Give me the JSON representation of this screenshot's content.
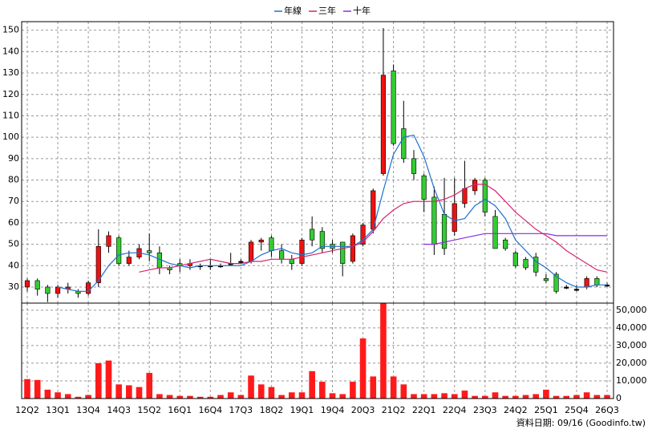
{
  "chart_data": {
    "type": "candlestick",
    "categories": [
      "12Q2",
      null,
      null,
      "13Q1",
      null,
      null,
      "13Q4",
      null,
      null,
      "14Q3",
      null,
      null,
      "15Q2",
      null,
      null,
      "16Q1",
      null,
      null,
      "16Q4",
      null,
      null,
      "17Q3",
      null,
      null,
      "18Q2",
      null,
      null,
      "19Q1",
      null,
      null,
      "19Q4",
      null,
      null,
      "20Q3",
      null,
      null,
      "21Q2",
      null,
      null,
      "22Q1",
      null,
      null,
      "22Q4",
      null,
      null,
      "23Q3",
      null,
      null,
      "24Q2",
      null,
      null,
      "25Q1",
      null,
      null,
      "25Q4",
      null,
      null,
      "26Q3"
    ],
    "open": [
      30,
      33,
      30,
      27,
      29,
      28,
      27,
      32,
      49,
      53,
      41,
      44,
      47,
      46,
      39,
      41,
      40,
      40,
      40,
      40,
      41,
      42,
      42,
      51,
      53,
      47,
      43,
      41,
      57,
      56,
      50,
      51,
      42,
      50,
      57,
      83,
      131,
      104,
      90,
      82,
      72,
      64,
      56,
      69,
      75,
      80,
      63,
      52,
      46,
      43,
      44,
      34,
      36,
      30,
      29,
      30,
      34,
      31
    ],
    "high": [
      34,
      34,
      31,
      31,
      32,
      29,
      33,
      57,
      56,
      54,
      47,
      50,
      55,
      49,
      40,
      43,
      43,
      41,
      43,
      41,
      46,
      43,
      52,
      53,
      54,
      50,
      45,
      53,
      63,
      58,
      52,
      51,
      55,
      60,
      76,
      151,
      134,
      117,
      94,
      83,
      77,
      81,
      81,
      89,
      81,
      81,
      66,
      53,
      47,
      44,
      46,
      36,
      37,
      31,
      31,
      35,
      35,
      32
    ],
    "low": [
      28,
      26,
      23,
      25,
      27,
      25,
      26,
      30,
      46,
      40,
      40,
      43,
      42,
      36,
      36,
      37,
      38,
      38,
      38,
      39,
      40,
      41,
      41,
      47,
      44,
      41,
      38,
      40,
      49,
      46,
      46,
      35,
      41,
      49,
      55,
      82,
      96,
      88,
      80,
      65,
      45,
      45,
      54,
      67,
      73,
      63,
      48,
      47,
      39,
      38,
      35,
      32,
      27,
      29,
      28,
      29,
      30,
      30
    ],
    "close": [
      33,
      29,
      27,
      30,
      30,
      27,
      32,
      49,
      54,
      41,
      44,
      48,
      46,
      39,
      38,
      40,
      41,
      40,
      40,
      40,
      41,
      42,
      51,
      52,
      47,
      43,
      41,
      52,
      52,
      48,
      48,
      41,
      54,
      59,
      75,
      129,
      97,
      90,
      83,
      71,
      50,
      48,
      69,
      76,
      80,
      65,
      48,
      48,
      40,
      39,
      37,
      33,
      28,
      30,
      29,
      34,
      31,
      31
    ],
    "up_color": "#ee1111",
    "down_color": "#33cc33",
    "ylim": [
      22.5,
      154
    ],
    "yticks": [
      30,
      40,
      50,
      60,
      70,
      80,
      90,
      100,
      110,
      120,
      130,
      140,
      150
    ],
    "grid": true,
    "legend": "top",
    "series": [
      {
        "name": "年線",
        "color": "#1f6fcf",
        "values": [
          null,
          null,
          null,
          30,
          29,
          28,
          28,
          33,
          40,
          45,
          46,
          46,
          45,
          43,
          41,
          40,
          39,
          40,
          40,
          40,
          40,
          40,
          42,
          45,
          47,
          48,
          46,
          45,
          46,
          49,
          49,
          49,
          49,
          52,
          57,
          75,
          92,
          100,
          101,
          91,
          76,
          64,
          61,
          62,
          68,
          71,
          68,
          62,
          52,
          47,
          42,
          39,
          35,
          32,
          30,
          30,
          31,
          31
        ]
      },
      {
        "name": "三年",
        "color": "#d6246e",
        "values": [
          null,
          null,
          null,
          null,
          null,
          null,
          null,
          null,
          null,
          null,
          null,
          37,
          38,
          39,
          39,
          40,
          41,
          42,
          43,
          42,
          41,
          41,
          42,
          42,
          43,
          43,
          43,
          44,
          45,
          46,
          47,
          48,
          49,
          51,
          56,
          62,
          66,
          69,
          70,
          70,
          70,
          71,
          73,
          76,
          78,
          78,
          75,
          70,
          65,
          61,
          57,
          54,
          51,
          47,
          44,
          41,
          38,
          37
        ]
      },
      {
        "name": "十年",
        "color": "#8a2be2",
        "values": [
          null,
          null,
          null,
          null,
          null,
          null,
          null,
          null,
          null,
          null,
          null,
          null,
          null,
          null,
          null,
          null,
          null,
          null,
          null,
          null,
          null,
          null,
          null,
          null,
          null,
          null,
          null,
          null,
          null,
          null,
          null,
          null,
          null,
          null,
          null,
          null,
          null,
          null,
          null,
          50,
          50,
          51,
          52,
          53,
          54,
          55,
          55,
          55,
          55,
          55,
          55,
          55,
          54,
          54,
          54,
          54,
          54,
          54
        ]
      }
    ],
    "volume": {
      "type": "bar",
      "color": "#ff1a1a",
      "values": [
        11000,
        10500,
        5000,
        3500,
        2500,
        1000,
        2000,
        20000,
        21500,
        8000,
        7500,
        6500,
        14500,
        2500,
        2000,
        1500,
        1500,
        1000,
        1000,
        2000,
        3500,
        2000,
        13000,
        8000,
        6500,
        2000,
        3500,
        3500,
        15500,
        9500,
        3000,
        2500,
        9500,
        34000,
        12500,
        54000,
        12500,
        8000,
        2500,
        2500,
        2500,
        3000,
        2500,
        4500,
        1500,
        1500,
        3500,
        1500,
        1500,
        2000,
        2500,
        5000,
        1500,
        1500,
        2000,
        3500,
        2000,
        2000
      ],
      "y2lim": [
        0,
        54000
      ],
      "y2ticks": [
        0,
        {
          "value": 10000,
          "label": "10,000"
        },
        {
          "value": 20000,
          "label": "20,000"
        },
        {
          "value": 30000,
          "label": "30,000"
        },
        {
          "value": 40000,
          "label": "40,000"
        },
        {
          "value": 50000,
          "label": "50,000"
        }
      ]
    },
    "footnote": "資料日期: 09/16  (Goodinfo.tw)"
  }
}
